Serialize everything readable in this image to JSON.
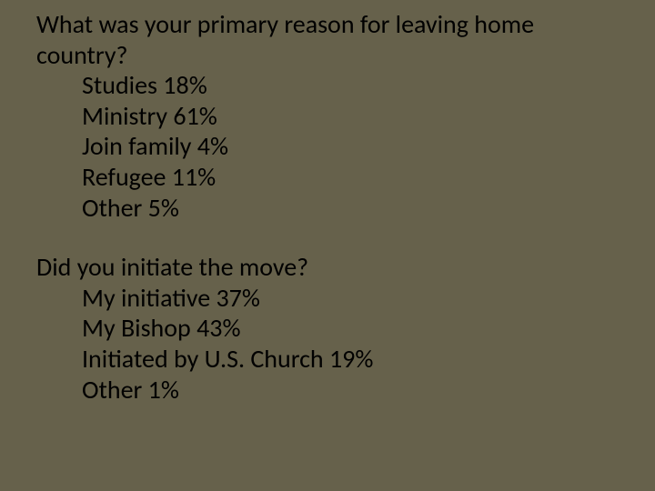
{
  "background_color": "#66614b",
  "text_color": "#000000",
  "font_family": "Calibri, 'Segoe UI', Arial, sans-serif",
  "font_size_pt": 21,
  "blocks": [
    {
      "question": "What was your primary reason for leaving home country?",
      "items": [
        "Studies 18%",
        "Ministry 61%",
        "Join family 4%",
        "Refugee 11%",
        "Other 5%"
      ]
    },
    {
      "question": "Did you initiate the move?",
      "items": [
        "My initiative 37%",
        "My Bishop 43%",
        "Initiated by U.S. Church 19%",
        "Other 1%"
      ]
    }
  ]
}
